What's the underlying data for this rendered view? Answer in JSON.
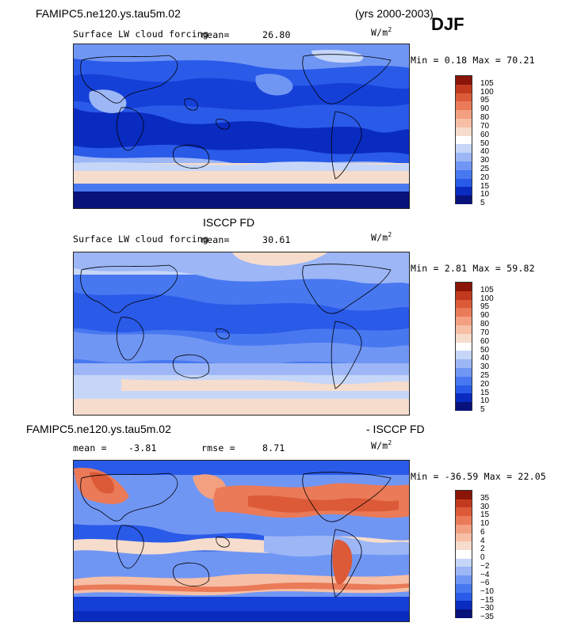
{
  "header": {
    "model": "FAMIPC5.ne120.ys.tau5m.02",
    "years": "(yrs 2000-2003)",
    "season": "DJF"
  },
  "panels": [
    {
      "id": "model",
      "heading": "",
      "title": "Surface LW cloud forcing",
      "mean_label": "mean=",
      "mean_value": "26.80",
      "units": "W/m",
      "units_exp": "2",
      "minmax": "Min =   0.18 Max =  70.21",
      "colorbar_labels": [
        "105",
        "100",
        "95",
        "90",
        "80",
        "70",
        "60",
        "50",
        "40",
        "30",
        "25",
        "20",
        "15",
        "10",
        "5"
      ]
    },
    {
      "id": "obs",
      "heading": "ISCCP FD",
      "title": "Surface LW cloud forcing",
      "mean_label": "mean=",
      "mean_value": "30.61",
      "units": "W/m",
      "units_exp": "2",
      "minmax": "Min =   2.81 Max =  59.82",
      "colorbar_labels": [
        "105",
        "100",
        "95",
        "90",
        "80",
        "70",
        "60",
        "50",
        "40",
        "30",
        "25",
        "20",
        "15",
        "10",
        "5"
      ]
    },
    {
      "id": "diff",
      "heading_left": "FAMIPC5.ne120.ys.tau5m.02",
      "heading_right": "- ISCCP FD",
      "mean_label": "mean =",
      "mean_value": "-3.81",
      "rmse_label": "rmse =",
      "rmse_value": "8.71",
      "units": "W/m",
      "units_exp": "2",
      "minmax": "Min = -36.59 Max =  22.05",
      "colorbar_labels": [
        "35",
        "30",
        "15",
        "10",
        "6",
        "4",
        "2",
        "0",
        "−2",
        "−4",
        "−6",
        "−10",
        "−15",
        "−30",
        "−35"
      ]
    }
  ],
  "chart_data": [
    {
      "type": "heatmap",
      "title": "Surface LW cloud forcing",
      "units": "W/m2",
      "mean": 26.8,
      "min": 0.18,
      "max": 70.21,
      "color_levels": [
        5,
        10,
        15,
        20,
        25,
        30,
        40,
        50,
        60,
        70,
        80,
        90,
        95,
        100,
        105
      ],
      "colors": [
        "#08127a",
        "#0a2bc0",
        "#1540d8",
        "#2a5ae8",
        "#4878f0",
        "#7096f4",
        "#9cb6f6",
        "#c6d6f8",
        "#f6dccc",
        "#f6bfa6",
        "#f2a080",
        "#ea7a58",
        "#dc5a38",
        "#c23a1e",
        "#8a1408"
      ]
    },
    {
      "type": "heatmap",
      "title": "Surface LW cloud forcing",
      "units": "W/m2",
      "mean": 30.61,
      "min": 2.81,
      "max": 59.82,
      "color_levels": [
        5,
        10,
        15,
        20,
        25,
        30,
        40,
        50,
        60,
        70,
        80,
        90,
        95,
        100,
        105
      ]
    },
    {
      "type": "heatmap",
      "units": "W/m2",
      "mean": -3.81,
      "rmse": 8.71,
      "min": -36.59,
      "max": 22.05,
      "color_levels": [
        -35,
        -30,
        -15,
        -10,
        -6,
        -4,
        -2,
        0,
        2,
        4,
        6,
        10,
        15,
        30,
        35
      ],
      "colors": [
        "#08127a",
        "#0a2bc0",
        "#1540d8",
        "#2a5ae8",
        "#4878f0",
        "#7096f4",
        "#9cb6f6",
        "#c6d6f8",
        "#f6dccc",
        "#f6bfa6",
        "#f2a080",
        "#ea7a58",
        "#dc5a38",
        "#c23a1e",
        "#8a1408"
      ]
    }
  ]
}
